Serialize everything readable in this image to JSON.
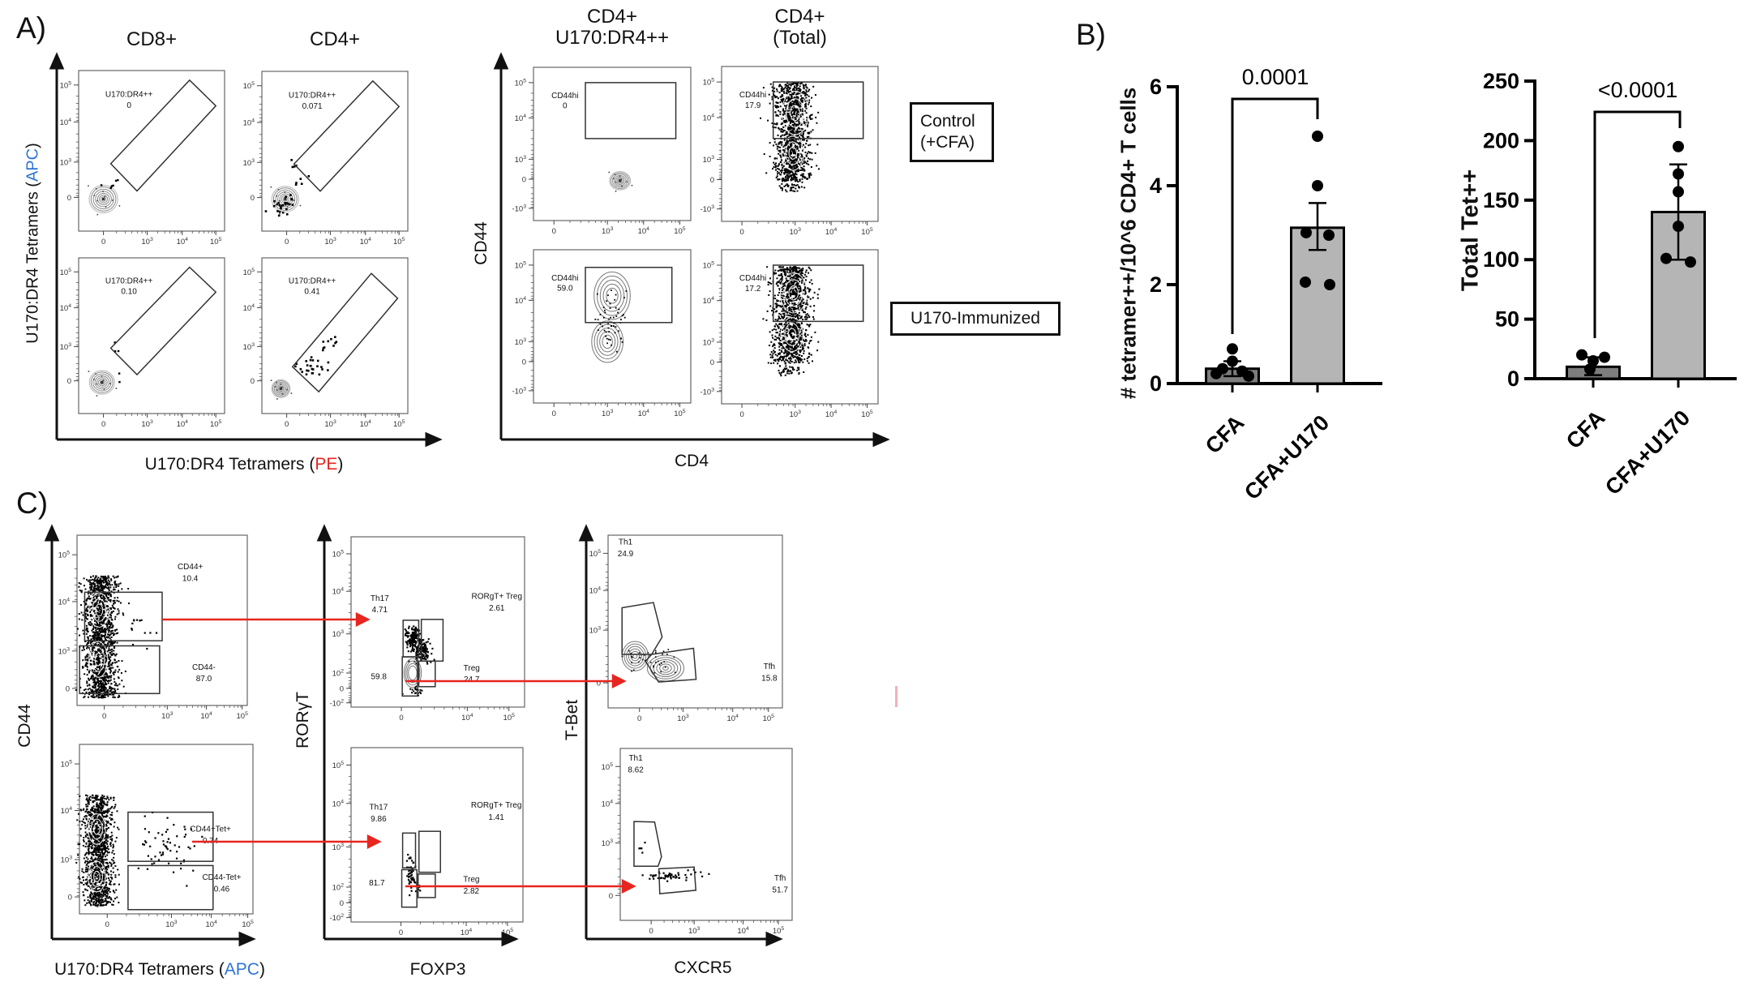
{
  "panelA": {
    "label": "A)",
    "column_titles": [
      "CD8+",
      "CD4+"
    ],
    "middle_titles": [
      {
        "line1": "CD4+",
        "line2": "U170:DR4++"
      },
      {
        "line1": "CD4+",
        "line2": "(Total)"
      }
    ],
    "row_labels": [
      {
        "line1": "Control",
        "line2": "(+CFA)"
      },
      {
        "line1": "U170-Immunized"
      }
    ],
    "y_axis": {
      "prefix": "U170:DR4 Tetramers (",
      "highlight": "APC",
      "suffix": ")"
    },
    "x_axis": {
      "prefix": "U170:DR4 Tetramers (",
      "highlight": "PE",
      "suffix": ")"
    },
    "middle_y_axis": "CD44",
    "middle_x_axis": "CD4"
  },
  "panelB": {
    "label": "B)"
  },
  "panelC": {
    "label": "C)",
    "y_axis_labels": [
      "CD44",
      "RORγT",
      "T-Bet"
    ],
    "x_axis_label_1": {
      "prefix": "U170:DR4 Tetramers (",
      "highlight": "APC",
      "suffix": ")"
    },
    "x_axis_label_2": "FOXP3",
    "x_axis_label_3": "CXCR5"
  },
  "colors": {
    "apc_blue": "#2e75d6",
    "pe_red": "#e8251f",
    "gating_arrow_red": "#e8251f",
    "bar_dark_gray": "#7d7d7d",
    "bar_light_gray": "#b5b5b5"
  },
  "flow_plots": [
    {
      "id": "a1",
      "gates": [
        {
          "name": "U170:DR4++",
          "value": "0"
        }
      ],
      "yticks": [
        "10^5",
        "10^4",
        "10^3",
        "0"
      ],
      "xticks": [
        "0",
        "10^3",
        "10^4",
        "10^5"
      ]
    },
    {
      "id": "a2",
      "gates": [
        {
          "name": "U170:DR4++",
          "value": "0.071"
        }
      ],
      "yticks": [
        "10^5",
        "10^4",
        "10^3",
        "0"
      ],
      "xticks": [
        "0",
        "10^3",
        "10^4",
        "10^5"
      ]
    },
    {
      "id": "a3",
      "gates": [
        {
          "name": "U170:DR4++",
          "value": "0.10"
        }
      ],
      "yticks": [
        "10^5",
        "10^4",
        "10^3",
        "0"
      ],
      "xticks": [
        "0",
        "10^3",
        "10^4",
        "10^5"
      ]
    },
    {
      "id": "a4",
      "gates": [
        {
          "name": "U170:DR4++",
          "value": "0.41"
        }
      ],
      "yticks": [
        "10^5",
        "10^4",
        "10^3",
        "0"
      ],
      "xticks": [
        "0",
        "10^3",
        "10^4",
        "10^5"
      ]
    },
    {
      "id": "m1",
      "gates": [
        {
          "name": "CD44hi",
          "value": "0"
        }
      ],
      "yticks": [
        "10^5",
        "10^4",
        "10^3",
        "0",
        "-10^3"
      ],
      "xticks": [
        "0",
        "10^3",
        "10^4",
        "10^5"
      ]
    },
    {
      "id": "m2",
      "gates": [
        {
          "name": "CD44hi",
          "value": "17.9"
        }
      ],
      "yticks": [
        "10^5",
        "10^4",
        "10^3",
        "0",
        "-10^3"
      ],
      "xticks": [
        "0",
        "10^3",
        "10^4",
        "10^5"
      ]
    },
    {
      "id": "m3",
      "gates": [
        {
          "name": "CD44hi",
          "value": "59.0"
        }
      ],
      "yticks": [
        "10^5",
        "10^4",
        "10^3",
        "0",
        "-10^3"
      ],
      "xticks": [
        "0",
        "10^3",
        "10^4",
        "10^5"
      ]
    },
    {
      "id": "m4",
      "gates": [
        {
          "name": "CD44hi",
          "value": "17.2"
        }
      ],
      "yticks": [
        "10^5",
        "10^4",
        "10^3",
        "0",
        "-10^3"
      ],
      "xticks": [
        "0",
        "10^3",
        "10^4",
        "10^5"
      ]
    },
    {
      "id": "c1",
      "gates": [
        {
          "name": "CD44+",
          "value": "10.4"
        },
        {
          "name": "CD44-",
          "value": "87.0"
        }
      ],
      "yticks": [
        "10^5",
        "10^4",
        "10^3",
        "0"
      ],
      "xticks": [
        "0",
        "10^3",
        "10^4",
        "10^5"
      ]
    },
    {
      "id": "c2",
      "gates": [
        {
          "name": "Th17",
          "value": "4.71"
        },
        {
          "name": "RORgT+ Treg",
          "value": "2.61"
        },
        {
          "name": "",
          "value": "59.8"
        },
        {
          "name": "Treg",
          "value": "24.7"
        }
      ],
      "yticks": [
        "10^5",
        "10^4",
        "10^3",
        "10^2",
        "0",
        "-10^2"
      ],
      "xticks": [
        "0",
        "10^4",
        "10^5"
      ]
    },
    {
      "id": "c3",
      "gates": [
        {
          "name": "Th1",
          "value": "24.9"
        },
        {
          "name": "Tfh",
          "value": "15.8"
        }
      ],
      "yticks": [
        "10^5",
        "10^4",
        "10^3",
        "0"
      ],
      "xticks": [
        "0",
        "10^3",
        "10^4",
        "10^5"
      ]
    },
    {
      "id": "c4",
      "gates": [
        {
          "name": "CD44+Tet+",
          "value": "0.74"
        },
        {
          "name": "CD44-Tet+",
          "value": "0.46"
        }
      ],
      "yticks": [
        "10^5",
        "10^4",
        "10^3",
        "0"
      ],
      "xticks": [
        "0",
        "10^3",
        "10^4",
        "10^5"
      ]
    },
    {
      "id": "c5",
      "gates": [
        {
          "name": "Th17",
          "value": "9.86"
        },
        {
          "name": "RORgT+ Treg",
          "value": "1.41"
        },
        {
          "name": "",
          "value": "81.7"
        },
        {
          "name": "Treg",
          "value": "2.82"
        }
      ],
      "yticks": [
        "10^5",
        "10^4",
        "10^3",
        "10^2",
        "0",
        "-10^2"
      ],
      "xticks": [
        "0",
        "10^4",
        "10^5"
      ]
    },
    {
      "id": "c6",
      "gates": [
        {
          "name": "Th1",
          "value": "8.62"
        },
        {
          "name": "Tfh",
          "value": "51.7"
        }
      ],
      "yticks": [
        "10^5",
        "10^4",
        "10^3",
        "0"
      ],
      "xticks": [
        "0",
        "10^3",
        "10^4",
        "10^5"
      ]
    }
  ],
  "chart_data": [
    {
      "type": "bar",
      "p_value": "0.0001",
      "ylabel": "# tetramer++/10^6 CD4+ T cells",
      "yticks": [
        0,
        2,
        4,
        6
      ],
      "ylim": [
        0,
        6
      ],
      "categories": [
        "CFA",
        "CFA+U170"
      ],
      "bars": [
        {
          "category": "CFA",
          "mean": 0.3,
          "error_low": 0.15,
          "error_high": 0.45,
          "points": [
            0.7,
            0.45,
            0.3,
            0.25,
            0.2,
            0.15
          ],
          "fill": "#7d7d7d"
        },
        {
          "category": "CFA+U170",
          "mean": 3.15,
          "error_low": 2.7,
          "error_high": 3.65,
          "points": [
            5.0,
            4.0,
            3.05,
            3.0,
            2.05,
            2.0
          ],
          "fill": "#b5b5b5"
        }
      ]
    },
    {
      "type": "bar",
      "p_value": "<0.0001",
      "ylabel": "Total Tet++",
      "yticks": [
        0,
        50,
        100,
        150,
        200,
        250
      ],
      "ylim": [
        0,
        250
      ],
      "categories": [
        "CFA",
        "CFA+U170"
      ],
      "bars": [
        {
          "category": "CFA",
          "mean": 10,
          "error_low": 3,
          "error_high": 18,
          "points": [
            20,
            18,
            15,
            8
          ],
          "fill": "#7d7d7d"
        },
        {
          "category": "CFA+U170",
          "mean": 140,
          "error_low": 100,
          "error_high": 180,
          "points": [
            195,
            172,
            157,
            128,
            101,
            98
          ],
          "fill": "#b5b5b5"
        }
      ]
    }
  ]
}
